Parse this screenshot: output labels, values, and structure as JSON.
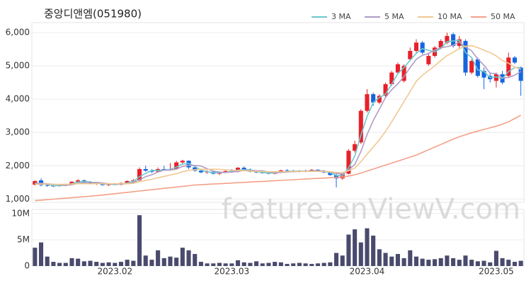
{
  "chart_data": [
    {
      "type": "candlestick",
      "title": "중앙디앤엠(051980)",
      "watermark": "feature.enViewV.com",
      "up_color": "#e8202a",
      "down_color": "#1565e0",
      "legend": "top-right",
      "grid": true,
      "ylim": [
        900,
        6300
      ],
      "yticks": [
        {
          "value": 1000,
          "label": "1,000"
        },
        {
          "value": 2000,
          "label": "2,000"
        },
        {
          "value": 3000,
          "label": "3,000"
        },
        {
          "value": 4000,
          "label": "4,000"
        },
        {
          "value": 5000,
          "label": "5,000"
        },
        {
          "value": 6000,
          "label": "6,000"
        }
      ],
      "open": [
        1430,
        1560,
        1420,
        1400,
        1390,
        1410,
        1440,
        1520,
        1560,
        1500,
        1460,
        1470,
        1420,
        1450,
        1430,
        1480,
        1540,
        1560,
        1900,
        1850,
        1820,
        1900,
        1880,
        1900,
        2100,
        2150,
        1950,
        1850,
        1800,
        1820,
        1760,
        1800,
        1840,
        1820,
        1940,
        1880,
        1820,
        1800,
        1790,
        1760,
        1800,
        1860,
        1840,
        1820,
        1850,
        1830,
        1880,
        1840,
        1800,
        1720,
        1620,
        1760,
        2450,
        2700,
        3650,
        4150,
        3900,
        4100,
        4450,
        4800,
        4550,
        5200,
        5450,
        5700,
        5050,
        5300,
        5550,
        5700,
        5950,
        5600,
        5750,
        4800,
        5200,
        4850,
        4700,
        4550,
        4750,
        4700,
        5250,
        4950
      ],
      "high": [
        1560,
        1620,
        1460,
        1440,
        1430,
        1460,
        1530,
        1600,
        1590,
        1540,
        1500,
        1490,
        1470,
        1480,
        1500,
        1560,
        1600,
        1950,
        2000,
        1900,
        1950,
        2000,
        2080,
        2150,
        2180,
        2160,
        1980,
        1880,
        1860,
        1850,
        1820,
        1860,
        1900,
        1960,
        1980,
        1920,
        1860,
        1840,
        1830,
        1820,
        1880,
        1900,
        1880,
        1870,
        1880,
        1900,
        1900,
        1870,
        1820,
        1760,
        1800,
        2500,
        2750,
        3700,
        4300,
        4200,
        4150,
        4500,
        4850,
        5100,
        5050,
        5550,
        5800,
        5750,
        5400,
        5600,
        5800,
        6000,
        6000,
        5900,
        5800,
        5200,
        5250,
        4950,
        4800,
        4800,
        4850,
        5400,
        5300,
        4980
      ],
      "low": [
        1400,
        1380,
        1370,
        1360,
        1370,
        1380,
        1420,
        1480,
        1480,
        1440,
        1420,
        1400,
        1390,
        1420,
        1410,
        1460,
        1500,
        1540,
        1820,
        1780,
        1800,
        1860,
        1850,
        1880,
        2040,
        1900,
        1820,
        1780,
        1760,
        1740,
        1720,
        1780,
        1800,
        1800,
        1860,
        1800,
        1780,
        1760,
        1740,
        1740,
        1780,
        1820,
        1800,
        1800,
        1810,
        1820,
        1820,
        1780,
        1700,
        1350,
        1580,
        1740,
        2400,
        2650,
        3600,
        3800,
        3850,
        4050,
        4400,
        4750,
        4500,
        5150,
        5400,
        5350,
        5000,
        5250,
        5500,
        5650,
        5550,
        5500,
        4700,
        4750,
        4650,
        4300,
        4500,
        4350,
        4450,
        4650,
        5050,
        4100
      ],
      "close": [
        1540,
        1420,
        1400,
        1390,
        1410,
        1440,
        1520,
        1560,
        1500,
        1460,
        1470,
        1420,
        1450,
        1430,
        1480,
        1540,
        1560,
        1900,
        1850,
        1820,
        1900,
        1880,
        1900,
        2100,
        2150,
        1950,
        1850,
        1800,
        1820,
        1760,
        1800,
        1840,
        1820,
        1940,
        1880,
        1820,
        1800,
        1790,
        1760,
        1800,
        1860,
        1840,
        1820,
        1850,
        1830,
        1880,
        1840,
        1800,
        1720,
        1620,
        1760,
        2450,
        2650,
        3650,
        4150,
        3900,
        4100,
        4450,
        4800,
        5050,
        5000,
        5450,
        5700,
        5400,
        5300,
        5550,
        5750,
        5900,
        5600,
        5800,
        4800,
        5150,
        4700,
        4650,
        4600,
        4750,
        4500,
        5250,
        5100,
        4550
      ],
      "series": [
        {
          "name": "3 MA",
          "color": "#6cc8cc",
          "values": [
            1480,
            1470,
            1450,
            1400,
            1400,
            1410,
            1460,
            1510,
            1530,
            1510,
            1480,
            1450,
            1450,
            1430,
            1450,
            1480,
            1530,
            1670,
            1770,
            1860,
            1860,
            1870,
            1890,
            1960,
            2050,
            2070,
            1980,
            1870,
            1820,
            1790,
            1790,
            1800,
            1820,
            1870,
            1880,
            1880,
            1830,
            1800,
            1780,
            1780,
            1810,
            1830,
            1840,
            1840,
            1830,
            1850,
            1850,
            1840,
            1790,
            1710,
            1700,
            1940,
            2290,
            2920,
            3480,
            3900,
            4050,
            4150,
            4450,
            4770,
            4950,
            5170,
            5380,
            5520,
            5470,
            5420,
            5530,
            5730,
            5750,
            5770,
            5400,
            5250,
            4880,
            4830,
            4650,
            4670,
            4620,
            4830,
            4950,
            4950
          ]
        },
        {
          "name": "5 MA",
          "color": "#b09cc4",
          "values": [
            1470,
            1470,
            1460,
            1440,
            1430,
            1410,
            1430,
            1470,
            1490,
            1500,
            1500,
            1480,
            1460,
            1450,
            1450,
            1460,
            1500,
            1580,
            1670,
            1730,
            1810,
            1870,
            1870,
            1900,
            1980,
            2010,
            2010,
            1990,
            1910,
            1840,
            1810,
            1800,
            1810,
            1830,
            1860,
            1860,
            1850,
            1850,
            1810,
            1790,
            1800,
            1810,
            1820,
            1830,
            1840,
            1840,
            1850,
            1840,
            1810,
            1770,
            1750,
            1870,
            2040,
            2430,
            2940,
            3360,
            3700,
            4050,
            4280,
            4460,
            4680,
            4950,
            5200,
            5320,
            5370,
            5480,
            5540,
            5580,
            5620,
            5720,
            5570,
            5450,
            5210,
            5020,
            4780,
            4770,
            4640,
            4650,
            4720,
            4830
          ]
        },
        {
          "name": "10 MA",
          "color": "#f0c890",
          "values": [
            1440,
            1450,
            1450,
            1440,
            1440,
            1440,
            1450,
            1460,
            1460,
            1460,
            1460,
            1460,
            1460,
            1460,
            1460,
            1460,
            1470,
            1520,
            1560,
            1590,
            1640,
            1680,
            1720,
            1760,
            1820,
            1860,
            1880,
            1900,
            1890,
            1900,
            1890,
            1880,
            1860,
            1860,
            1850,
            1840,
            1830,
            1830,
            1820,
            1820,
            1820,
            1820,
            1830,
            1830,
            1830,
            1830,
            1830,
            1830,
            1820,
            1800,
            1790,
            1850,
            1930,
            2120,
            2350,
            2560,
            2780,
            3030,
            3320,
            3620,
            3930,
            4230,
            4540,
            4720,
            4860,
            5000,
            5160,
            5310,
            5410,
            5520,
            5590,
            5610,
            5550,
            5470,
            5400,
            5300,
            5160,
            5080,
            4960,
            4900
          ]
        },
        {
          "name": "50 MA",
          "color": "#f4a088",
          "values": [
            950,
            965,
            980,
            995,
            1010,
            1025,
            1040,
            1055,
            1070,
            1085,
            1100,
            1120,
            1140,
            1160,
            1180,
            1200,
            1220,
            1240,
            1260,
            1280,
            1300,
            1320,
            1340,
            1360,
            1380,
            1400,
            1420,
            1430,
            1440,
            1450,
            1460,
            1470,
            1480,
            1490,
            1500,
            1510,
            1520,
            1530,
            1540,
            1550,
            1560,
            1570,
            1580,
            1590,
            1600,
            1610,
            1620,
            1630,
            1640,
            1650,
            1660,
            1690,
            1730,
            1780,
            1840,
            1900,
            1960,
            2020,
            2080,
            2140,
            2200,
            2260,
            2320,
            2400,
            2480,
            2560,
            2640,
            2720,
            2800,
            2870,
            2930,
            2990,
            3040,
            3090,
            3140,
            3190,
            3250,
            3320,
            3420,
            3520
          ]
        }
      ]
    },
    {
      "type": "bar",
      "color": "#4a4a6e",
      "grid": true,
      "ylim": [
        0,
        10800000
      ],
      "yticks": [
        0,
        {
          "value": 5000000,
          "label": "5M"
        },
        {
          "value": 10000000,
          "label": "10M"
        }
      ],
      "categories": [
        null,
        null,
        null,
        null,
        null,
        null,
        null,
        null,
        null,
        null,
        null,
        null,
        null,
        "2023.02",
        null,
        null,
        null,
        null,
        null,
        null,
        null,
        null,
        null,
        null,
        null,
        null,
        null,
        null,
        null,
        null,
        null,
        null,
        "2023.03",
        null,
        null,
        null,
        null,
        null,
        null,
        null,
        null,
        null,
        null,
        null,
        null,
        null,
        null,
        null,
        null,
        null,
        null,
        null,
        null,
        null,
        "2023.04",
        null,
        null,
        null,
        null,
        null,
        null,
        null,
        null,
        null,
        null,
        null,
        null,
        null,
        null,
        null,
        null,
        null,
        null,
        null,
        null,
        "2023.05",
        null,
        null,
        null,
        null
      ],
      "values": [
        3500000,
        4500000,
        1800000,
        800000,
        600000,
        600000,
        1500000,
        1400000,
        900000,
        1000000,
        800000,
        600000,
        700000,
        600000,
        800000,
        1200000,
        1000000,
        9700000,
        2000000,
        1200000,
        3000000,
        1500000,
        1800000,
        1600000,
        3500000,
        3000000,
        2300000,
        800000,
        500000,
        500000,
        600000,
        500000,
        500000,
        1100000,
        700000,
        600000,
        900000,
        500000,
        600000,
        800000,
        700000,
        400000,
        500000,
        600000,
        500000,
        400000,
        500000,
        600000,
        700000,
        2500000,
        2000000,
        6000000,
        7000000,
        4500000,
        7200000,
        5800000,
        3200000,
        2500000,
        1800000,
        2300000,
        1500000,
        3000000,
        1800000,
        1400000,
        1200000,
        1300000,
        1500000,
        2000000,
        1500000,
        1200000,
        2000000,
        1200000,
        900000,
        1000000,
        700000,
        2900000,
        1500000,
        1200000,
        800000,
        1000000
      ]
    }
  ]
}
